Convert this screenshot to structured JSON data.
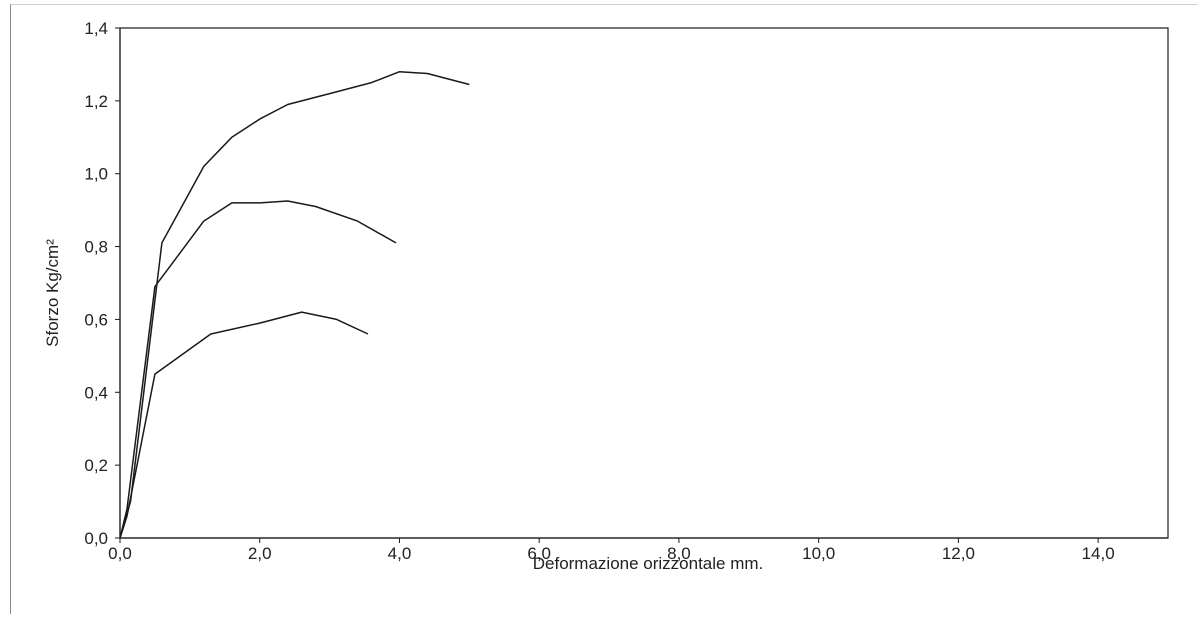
{
  "chart_data": {
    "type": "line",
    "title": "",
    "xlabel": "Deformazione orizzontale mm.",
    "ylabel": "Sforzo Kg/cm²",
    "xlim": [
      0,
      15
    ],
    "ylim": [
      0,
      1.4
    ],
    "x_ticks": [
      "0,0",
      "2,0",
      "4,0",
      "6,0",
      "8,0",
      "10,0",
      "12,0",
      "14,0"
    ],
    "x_tick_values": [
      0,
      2,
      4,
      6,
      8,
      10,
      12,
      14
    ],
    "y_ticks": [
      "0,0",
      "0,2",
      "0,4",
      "0,6",
      "0,8",
      "1,0",
      "1,2",
      "1,4"
    ],
    "y_tick_values": [
      0,
      0.2,
      0.4,
      0.6,
      0.8,
      1.0,
      1.2,
      1.4
    ],
    "grid": false,
    "legend": "none",
    "series": [
      {
        "x": [
          0,
          0.15,
          0.6,
          1.2,
          1.6,
          2.0,
          2.4,
          3.0,
          3.6,
          4.0,
          4.4,
          5.0
        ],
        "y": [
          0,
          0.1,
          0.81,
          1.02,
          1.1,
          1.15,
          1.19,
          1.22,
          1.25,
          1.28,
          1.275,
          1.245
        ]
      },
      {
        "x": [
          0,
          0.1,
          0.5,
          1.2,
          1.6,
          2.0,
          2.4,
          2.8,
          3.4,
          3.95
        ],
        "y": [
          0,
          0.08,
          0.69,
          0.87,
          0.92,
          0.92,
          0.925,
          0.91,
          0.87,
          0.81
        ]
      },
      {
        "x": [
          0,
          0.1,
          0.5,
          1.3,
          2.0,
          2.6,
          3.1,
          3.55
        ],
        "y": [
          0,
          0.06,
          0.45,
          0.56,
          0.59,
          0.62,
          0.6,
          0.56
        ]
      }
    ]
  }
}
